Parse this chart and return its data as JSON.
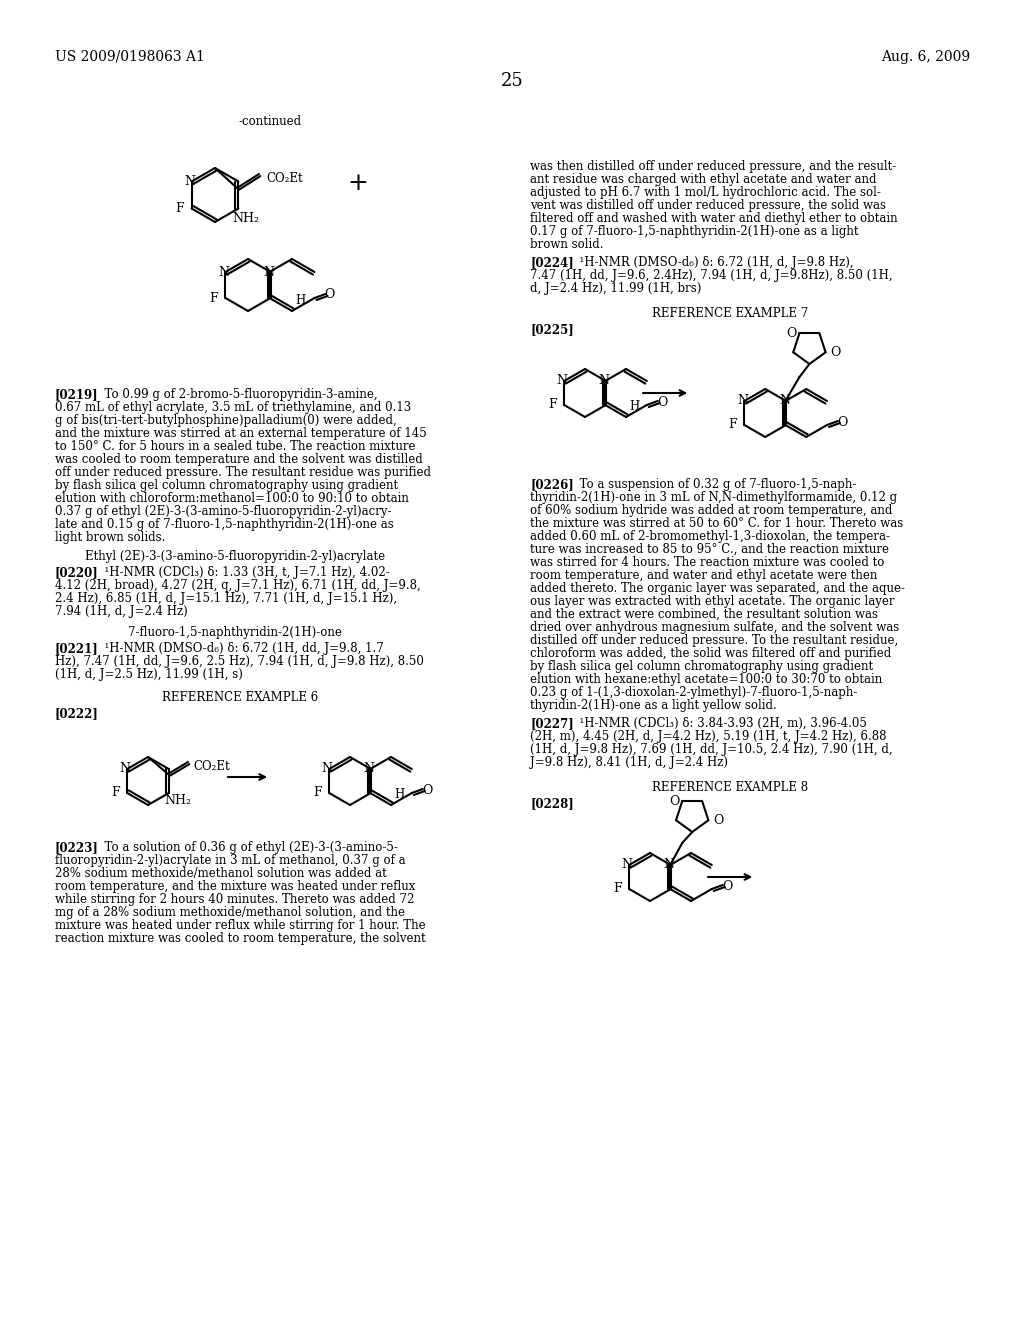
{
  "page_header_left": "US 2009/0198063 A1",
  "page_header_right": "Aug. 6, 2009",
  "page_number": "25",
  "background_color": "#ffffff",
  "text_color": "#000000",
  "body_fs": 8.5,
  "header_fs": 10,
  "page_num_fs": 13
}
